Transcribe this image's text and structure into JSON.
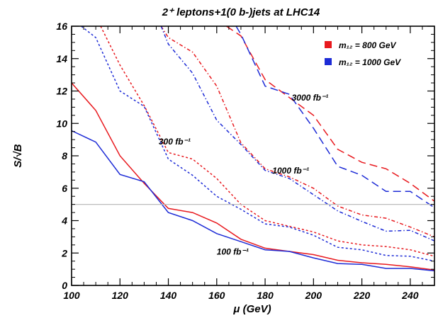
{
  "chart_data": {
    "type": "line",
    "title": "2⁺ leptons+1(0 b-)jets at LHC14",
    "xlabel": "μ (GeV)",
    "ylabel": "S/√B",
    "xlim": [
      100,
      250
    ],
    "ylim": [
      0,
      16
    ],
    "x_ticks": [
      100,
      120,
      140,
      160,
      180,
      200,
      220,
      240
    ],
    "y_ticks": [
      0,
      2,
      4,
      6,
      8,
      10,
      12,
      14,
      16
    ],
    "grid": false,
    "legend_position": "top-right",
    "legend": [
      {
        "label": "m₁₂ = 800 GeV",
        "color": "#e8191e"
      },
      {
        "label": "m₁₂ = 1000 GeV",
        "color": "#1d2bd6"
      }
    ],
    "reference_line": {
      "y": 5,
      "color": "#bbbbbb"
    },
    "annotations": [
      {
        "text": "100 fb⁻¹",
        "x": 160,
        "y": 1.9
      },
      {
        "text": "300 fb⁻¹",
        "x": 136,
        "y": 8.7
      },
      {
        "text": "1000 fb⁻¹",
        "x": 183,
        "y": 6.9
      },
      {
        "text": "3000 fb⁻¹",
        "x": 191,
        "y": 11.4
      }
    ],
    "series": [
      {
        "color": "#e8191e",
        "dash": "solid",
        "x": [
          100,
          110,
          120,
          130,
          140,
          150,
          160,
          170,
          180,
          190,
          200,
          210,
          220,
          230,
          240,
          250
        ],
        "y": [
          12.5,
          10.8,
          8.0,
          6.3,
          4.75,
          4.5,
          3.85,
          2.85,
          2.3,
          2.1,
          1.9,
          1.55,
          1.4,
          1.3,
          1.15,
          0.95
        ]
      },
      {
        "color": "#1d2bd6",
        "dash": "solid",
        "x": [
          100,
          110,
          120,
          130,
          140,
          150,
          160,
          170,
          180,
          190,
          200,
          210,
          220,
          230,
          240,
          250
        ],
        "y": [
          9.55,
          8.85,
          6.85,
          6.4,
          4.5,
          4.0,
          3.2,
          2.7,
          2.2,
          2.1,
          1.7,
          1.35,
          1.3,
          1.05,
          1.05,
          0.9
        ]
      },
      {
        "color": "#e8191e",
        "dash": "dotted",
        "x": [
          112,
          120,
          130,
          140,
          150,
          160,
          170,
          180,
          190,
          200,
          210,
          220,
          230,
          240,
          250
        ],
        "y": [
          16,
          13.6,
          11.1,
          8.2,
          7.8,
          6.6,
          5.0,
          4.0,
          3.65,
          3.3,
          2.75,
          2.5,
          2.4,
          2.2,
          1.8
        ]
      },
      {
        "color": "#1d2bd6",
        "dash": "dotted",
        "x": [
          104,
          110,
          120,
          130,
          140,
          150,
          160,
          170,
          180,
          190,
          200,
          210,
          220,
          230,
          240,
          250
        ],
        "y": [
          16,
          15.3,
          12.0,
          11.05,
          7.8,
          6.8,
          5.5,
          4.7,
          3.8,
          3.6,
          3.1,
          2.35,
          2.2,
          1.85,
          1.8,
          1.5
        ]
      },
      {
        "color": "#e8191e",
        "dash": "dashdot",
        "x": [
          137,
          140,
          150,
          160,
          170,
          180,
          190,
          200,
          210,
          220,
          230,
          240,
          250
        ],
        "y": [
          16,
          15.3,
          14.4,
          12.3,
          8.8,
          7.2,
          6.7,
          6.0,
          4.9,
          4.35,
          4.15,
          3.6,
          3.0
        ]
      },
      {
        "color": "#1d2bd6",
        "dash": "dashdot",
        "x": [
          137,
          140,
          150,
          160,
          170,
          180,
          190,
          200,
          210,
          220,
          230,
          240,
          250
        ],
        "y": [
          16,
          14.9,
          13.1,
          10.2,
          8.7,
          7.1,
          6.6,
          5.6,
          4.6,
          3.95,
          3.35,
          3.4,
          2.75
        ]
      },
      {
        "color": "#e8191e",
        "dash": "dashed",
        "x": [
          164,
          170,
          180,
          190,
          200,
          210,
          220,
          230,
          240,
          250
        ],
        "y": [
          16,
          15.4,
          12.7,
          11.6,
          10.5,
          8.4,
          7.6,
          7.2,
          6.3,
          5.2
        ]
      },
      {
        "color": "#1d2bd6",
        "dash": "dashed",
        "x": [
          168,
          170,
          180,
          190,
          200,
          210,
          220,
          230,
          240,
          250
        ],
        "y": [
          16,
          15.5,
          12.3,
          11.8,
          9.7,
          7.35,
          6.8,
          5.8,
          5.8,
          4.8
        ]
      }
    ]
  }
}
